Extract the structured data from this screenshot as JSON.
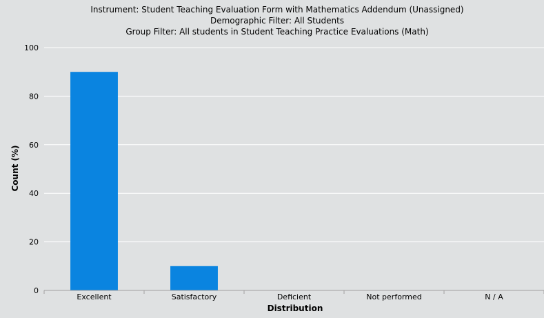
{
  "chart_data": {
    "type": "bar",
    "title": [
      "Instrument: Student Teaching Evaluation Form with Mathematics Addendum (Unassigned)",
      "Demographic Filter: All Students",
      "Group Filter: All students in Student Teaching Practice Evaluations (Math)"
    ],
    "xlabel": "Distribution",
    "ylabel": "Count (%)",
    "categories": [
      "Excellent",
      "Satisfactory",
      "Deficient",
      "Not performed",
      "N / A"
    ],
    "values": [
      90,
      10,
      0,
      0,
      0
    ],
    "ylim": [
      0,
      100
    ],
    "yticks": [
      0,
      20,
      40,
      60,
      80,
      100
    ],
    "grid": true,
    "legend": "none",
    "bar_color": "#0a84e0"
  }
}
